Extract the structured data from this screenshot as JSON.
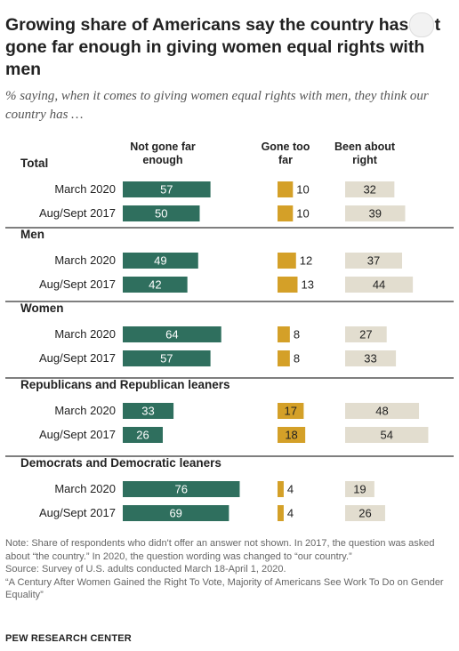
{
  "title": "Growing share of Americans say the country has not gone far enough in giving women equal rights with men",
  "subtitle": "% saying, when it comes to giving women equal rights with men, they think our country has …",
  "chart_data": {
    "type": "bar",
    "orientation": "horizontal",
    "columns": [
      {
        "key": "not_far_enough",
        "label": "Not gone far enough",
        "color": "#2f6f5e"
      },
      {
        "key": "too_far",
        "label": "Gone too far",
        "color": "#d4a028"
      },
      {
        "key": "about_right",
        "label": "Been about right",
        "color": "#e2ddcf"
      }
    ],
    "groups": [
      {
        "name": "Total",
        "rows": [
          {
            "label": "March 2020",
            "not_far_enough": 57,
            "too_far": 10,
            "about_right": 32
          },
          {
            "label": "Aug/Sept 2017",
            "not_far_enough": 50,
            "too_far": 10,
            "about_right": 39
          }
        ]
      },
      {
        "name": "Men",
        "rows": [
          {
            "label": "March 2020",
            "not_far_enough": 49,
            "too_far": 12,
            "about_right": 37
          },
          {
            "label": "Aug/Sept 2017",
            "not_far_enough": 42,
            "too_far": 13,
            "about_right": 44
          }
        ]
      },
      {
        "name": "Women",
        "rows": [
          {
            "label": "March 2020",
            "not_far_enough": 64,
            "too_far": 8,
            "about_right": 27
          },
          {
            "label": "Aug/Sept 2017",
            "not_far_enough": 57,
            "too_far": 8,
            "about_right": 33
          }
        ]
      },
      {
        "name": "Republicans and Republican leaners",
        "rows": [
          {
            "label": "March 2020",
            "not_far_enough": 33,
            "too_far": 17,
            "about_right": 48
          },
          {
            "label": "Aug/Sept 2017",
            "not_far_enough": 26,
            "too_far": 18,
            "about_right": 54
          }
        ]
      },
      {
        "name": "Democrats and Democratic leaners",
        "rows": [
          {
            "label": "March 2020",
            "not_far_enough": 76,
            "too_far": 4,
            "about_right": 19
          },
          {
            "label": "Aug/Sept 2017",
            "not_far_enough": 69,
            "too_far": 4,
            "about_right": 26
          }
        ]
      }
    ]
  },
  "notes": [
    "Note: Share of respondents who didn't offer an answer not shown. In 2017, the question was asked about “the country.” In 2020, the question wording was changed to “our country.”",
    "Source: Survey of U.S. adults conducted March 18-April 1, 2020.",
    "“A Century After Women Gained the Right To Vote, Majority of Americans See Work To Do on Gender Equality”"
  ],
  "source_org": "PEW RESEARCH CENTER"
}
